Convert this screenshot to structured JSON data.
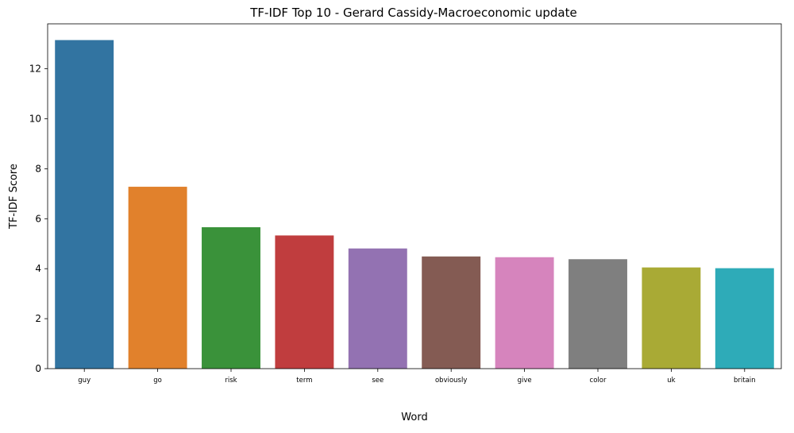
{
  "chart_data": {
    "type": "bar",
    "title": "TF-IDF Top 10 - Gerard Cassidy-Macroeconomic update",
    "xlabel": "Word",
    "ylabel": "TF-IDF Score",
    "categories": [
      "guy",
      "go",
      "risk",
      "term",
      "see",
      "obviously",
      "give",
      "color",
      "uk",
      "britain"
    ],
    "values": [
      13.15,
      7.28,
      5.66,
      5.33,
      4.81,
      4.49,
      4.46,
      4.38,
      4.05,
      4.02
    ],
    "colors": [
      "#3274a1",
      "#e1812c",
      "#3a923a",
      "#c03d3e",
      "#9372b2",
      "#845b53",
      "#d684bd",
      "#7f7f7f",
      "#a9aa35",
      "#2eabb8"
    ],
    "ylim": [
      0,
      13.8
    ],
    "yticks": [
      0,
      2,
      4,
      6,
      8,
      10,
      12
    ],
    "grid": false,
    "legend": "none"
  }
}
